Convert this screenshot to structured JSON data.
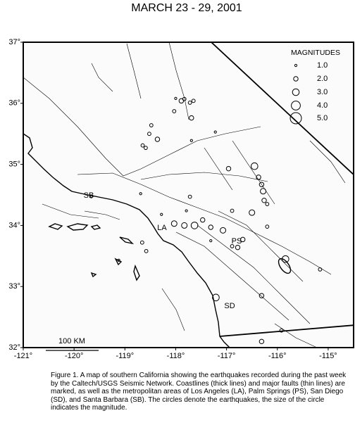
{
  "chart_data": {
    "type": "scatter",
    "title": "MARCH 23 - 29, 2001",
    "xlim": [
      -121,
      -114.5
    ],
    "ylim": [
      32,
      37
    ],
    "xticks": [
      {
        "value": -121,
        "label": "-121°"
      },
      {
        "value": -120,
        "label": "-120°"
      },
      {
        "value": -119,
        "label": "-119°"
      },
      {
        "value": -118,
        "label": "-118°"
      },
      {
        "value": -117,
        "label": "-117°"
      },
      {
        "value": -116,
        "label": "-116°"
      },
      {
        "value": -115,
        "label": "-115°"
      }
    ],
    "yticks": [
      {
        "value": 32,
        "label": "32°"
      },
      {
        "value": 33,
        "label": "33°"
      },
      {
        "value": 34,
        "label": "34°"
      },
      {
        "value": 35,
        "label": "35°"
      },
      {
        "value": 36,
        "label": "36°"
      },
      {
        "value": 37,
        "label": "37°"
      }
    ],
    "x": [
      -117.89,
      -117.83,
      -117.72,
      -117.65,
      -118.0,
      -118.03,
      -117.69,
      -118.48,
      -118.52,
      -118.36,
      -118.65,
      -118.59,
      -117.22,
      -117.69,
      -116.45,
      -116.37,
      -116.31,
      -116.28,
      -116.26,
      -116.96,
      -116.89,
      -117.63,
      -117.47,
      -117.31,
      -117.07,
      -116.68,
      -116.78,
      -116.5,
      -116.2,
      -116.2,
      -115.84,
      -117.21,
      -116.31,
      -115.92,
      -116.31,
      -117.72,
      -117.79,
      -118.28,
      -118.66,
      -118.58,
      -119.12,
      -117.83,
      -118.03,
      -115.16,
      -119.66,
      -118.69,
      -116.89,
      -117.31
    ],
    "y": [
      36.04,
      36.07,
      36.01,
      36.04,
      36.08,
      35.87,
      35.76,
      35.64,
      35.5,
      35.41,
      35.31,
      35.27,
      35.53,
      35.39,
      34.97,
      34.79,
      34.67,
      34.56,
      34.41,
      34.93,
      34.24,
      34.0,
      34.09,
      33.97,
      33.92,
      33.77,
      33.64,
      34.21,
      34.35,
      33.98,
      33.45,
      32.82,
      32.85,
      32.28,
      32.1,
      34.47,
      34.24,
      34.18,
      33.72,
      33.58,
      33.43,
      34.0,
      34.03,
      33.28,
      34.47,
      34.52,
      33.66,
      33.75
    ],
    "sizes": [
      2.0,
      1.5,
      1.5,
      1.5,
      1.0,
      1.5,
      2.0,
      1.5,
      1.5,
      2.0,
      1.5,
      1.5,
      1.0,
      1.0,
      3.0,
      2.0,
      2.0,
      2.5,
      2.0,
      2.0,
      1.5,
      3.0,
      2.0,
      2.0,
      2.5,
      2.0,
      2.0,
      2.5,
      1.5,
      1.5,
      3.0,
      3.0,
      2.0,
      1.5,
      2.0,
      1.5,
      1.0,
      1.0,
      1.5,
      1.5,
      1.0,
      2.5,
      2.5,
      1.5,
      1.0,
      1.0,
      1.5,
      1.0
    ],
    "legend_title": "MAGNITUDES",
    "size_legend": [
      {
        "value": 1,
        "label": "1.0"
      },
      {
        "value": 2,
        "label": "2.0"
      },
      {
        "value": 3,
        "label": "3.0"
      },
      {
        "value": 4,
        "label": "4.0"
      },
      {
        "value": 5,
        "label": "5.0"
      }
    ],
    "annotations": [
      "SB",
      "LA",
      "PS",
      "SD"
    ],
    "scale_label": "100 KM"
  },
  "caption": "Figure 1. A map of southern California showing the earthquakes recorded during the past week by the Caltech/USGS Seismic Network.  Coastlines (thick lines) and major faults (thin lines) are marked, as well as the metropolitan areas of Los Angeles (LA), Palm Springs (PS), San Diego (SD), and Santa Barbara (SB).  The circles denote the earthquakes, the size of the circle indicates the magnitude."
}
